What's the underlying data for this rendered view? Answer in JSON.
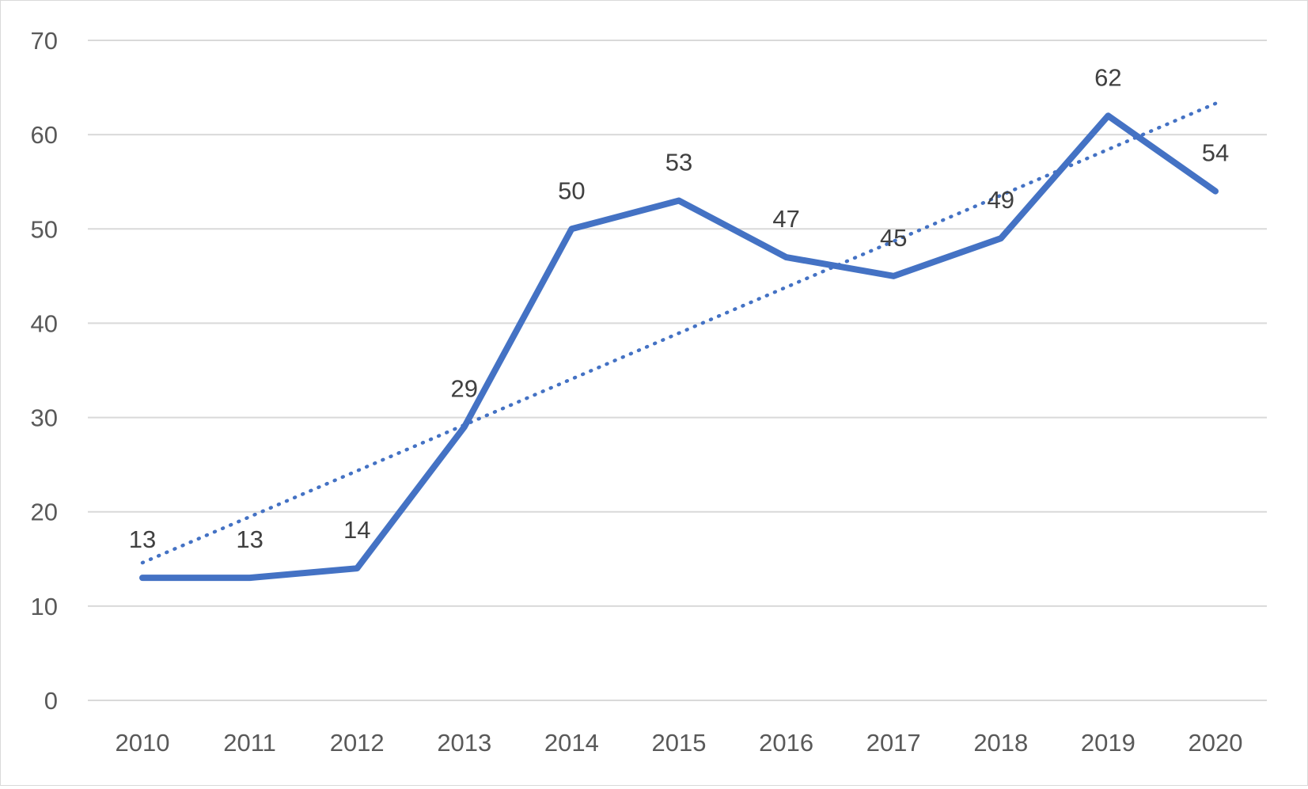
{
  "chart_data": {
    "type": "line",
    "title": "",
    "xlabel": "",
    "ylabel": "",
    "categories": [
      "2010",
      "2011",
      "2012",
      "2013",
      "2014",
      "2015",
      "2016",
      "2017",
      "2018",
      "2019",
      "2020"
    ],
    "series": [
      {
        "values": [
          13,
          13,
          14,
          29,
          50,
          53,
          47,
          45,
          49,
          62,
          54
        ],
        "color": "#4472c4",
        "data_labels": true
      }
    ],
    "trendline": {
      "type": "linear",
      "style": "dotted",
      "color": "#4472c4",
      "start": 14.6,
      "end": 63.3
    },
    "ylim": [
      0,
      70
    ],
    "y_ticks": [
      "0",
      "10",
      "20",
      "30",
      "40",
      "50",
      "60",
      "70"
    ],
    "grid": "horizontal",
    "legend": "none"
  }
}
